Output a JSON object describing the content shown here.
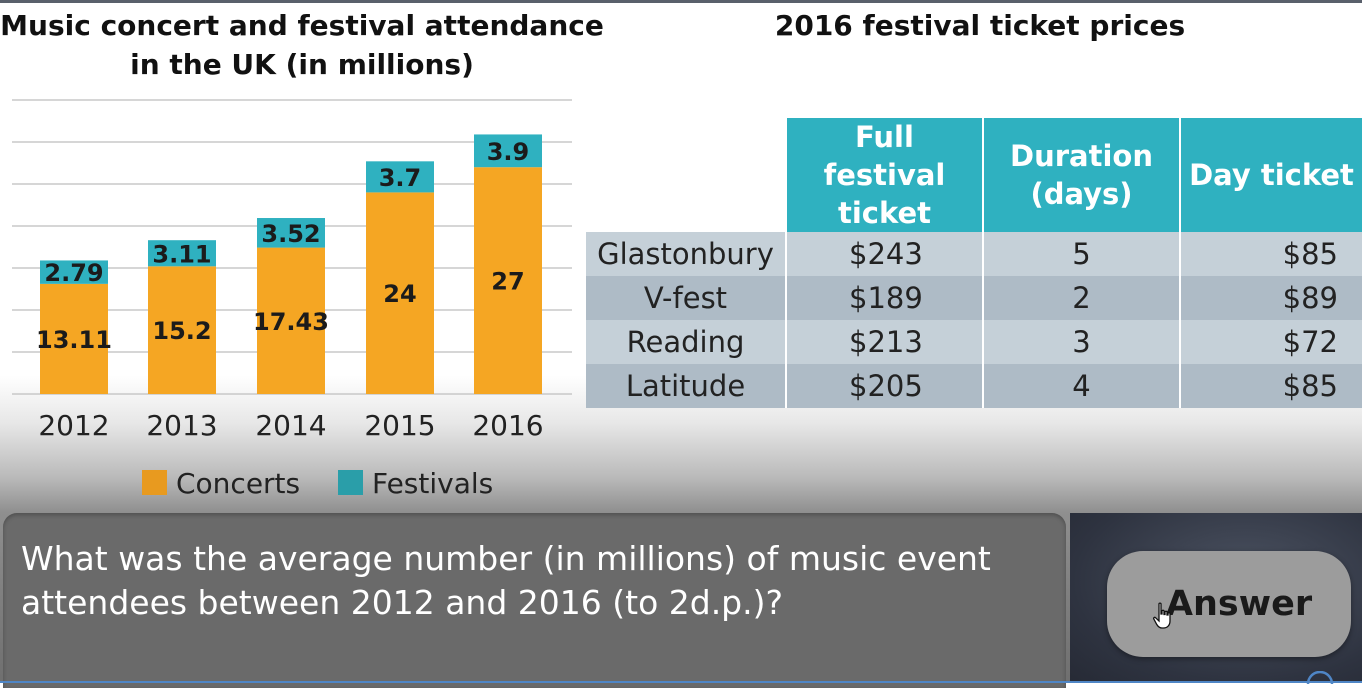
{
  "chart_data": {
    "type": "bar",
    "stacked": true,
    "title": "Music concert and festival attendance in the UK (in millions)",
    "categories": [
      "2012",
      "2013",
      "2014",
      "2015",
      "2016"
    ],
    "series": [
      {
        "name": "Concerts",
        "color": "#f5a623",
        "values": [
          13.11,
          15.2,
          17.43,
          24,
          27
        ]
      },
      {
        "name": "Festivals",
        "color": "#2fb1c0",
        "values": [
          2.79,
          3.11,
          3.52,
          3.7,
          3.9
        ]
      }
    ],
    "value_labels": {
      "Concerts": [
        "13.11",
        "15.2",
        "17.43",
        "24",
        "27"
      ],
      "Festivals": [
        "2.79",
        "3.11",
        "3.52",
        "3.7",
        "3.9"
      ]
    },
    "ylim": [
      0,
      35
    ],
    "grid": true,
    "legend_position": "bottom"
  },
  "table": {
    "title": "2016 festival ticket prices",
    "headers": [
      "Full festival ticket",
      "Duration (days)",
      "Day ticket"
    ],
    "rows": [
      {
        "name": "Glastonbury",
        "full": "$243",
        "days": "5",
        "day": "$85"
      },
      {
        "name": "V-fest",
        "full": "$189",
        "days": "2",
        "day": "$89"
      },
      {
        "name": "Reading",
        "full": "$213",
        "days": "3",
        "day": "$72"
      },
      {
        "name": "Latitude",
        "full": "$205",
        "days": "4",
        "day": "$85"
      }
    ]
  },
  "question": {
    "line1": "What was the average number (in millions) of music event",
    "line2": "attendees between 2012 and 2016 (to 2d.p.)?"
  },
  "answer_button": {
    "label": "Answer"
  },
  "icons": {
    "cursor": "hand-pointer-icon"
  }
}
